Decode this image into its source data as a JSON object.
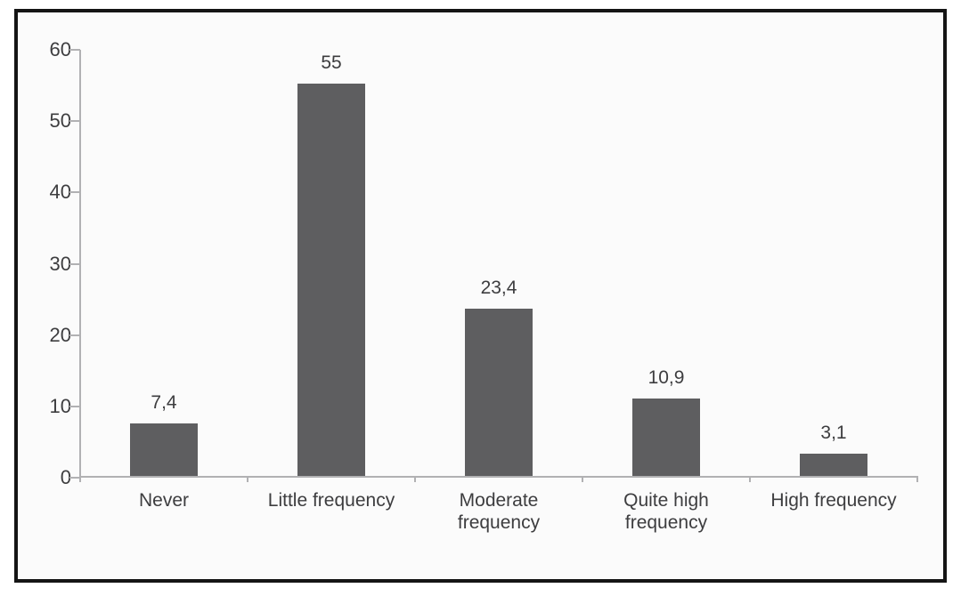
{
  "chart_data": {
    "type": "bar",
    "title": "",
    "xlabel": "",
    "ylabel": "",
    "categories": [
      "Never",
      "Little frequency",
      "Moderate frequency",
      "Quite high frequency",
      "High frequency"
    ],
    "category_display": [
      "Never",
      "Little frequency",
      "Moderate\nfrequency",
      "Quite high\nfrequency",
      "High frequency"
    ],
    "values": [
      7.4,
      55,
      23.4,
      10.9,
      3.1
    ],
    "value_labels": [
      "7,4",
      "55",
      "23,4",
      "10,9",
      "3,1"
    ],
    "ylim": [
      0,
      60
    ],
    "yticks": [
      0,
      10,
      20,
      30,
      40,
      50,
      60
    ],
    "decimal_separator": ",",
    "grid": false,
    "legend": false,
    "colors": {
      "bar": "#5e5e60",
      "axis": "#b1b1b3",
      "text": "#3d3d3f",
      "panel_background": "#fbfbfb",
      "frame_border": "#151515"
    }
  }
}
